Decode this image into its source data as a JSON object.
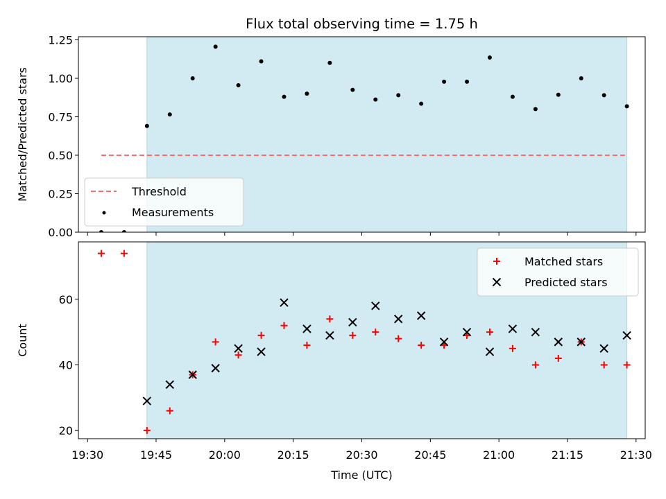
{
  "chart_data": [
    {
      "type": "scatter",
      "title": "Flux total observing time = 1.75 h",
      "ylabel": "Matched/Predicted stars",
      "xlabel": "",
      "ylim": [
        0,
        1.27
      ],
      "yticks": [
        0.0,
        0.25,
        0.5,
        0.75,
        1.0,
        1.25
      ],
      "ytick_labels": [
        "0.00",
        "0.25",
        "0.50",
        "0.75",
        "1.00",
        "1.25"
      ],
      "xticks": [
        "19:30",
        "19:45",
        "20:00",
        "20:15",
        "20:30",
        "20:45",
        "21:00",
        "21:15",
        "21:30"
      ],
      "xlim": [
        "19:28",
        "21:32"
      ],
      "shaded_region": {
        "start": "19:43",
        "end": "21:28",
        "color": "#add8e6"
      },
      "legend": {
        "placement": "lower-left",
        "entries": [
          {
            "name": "Threshold",
            "marker": "dashed-line",
            "color": "#ff6b6b"
          },
          {
            "name": "Measurements",
            "marker": "dot",
            "color": "#000000"
          }
        ]
      },
      "threshold": {
        "name": "Threshold",
        "y": 0.5,
        "x_start": "19:33",
        "x_end": "21:28",
        "color": "#ff6b6b"
      },
      "series": [
        {
          "name": "Measurements",
          "color": "#000000",
          "points": [
            [
              "19:33",
              0.0
            ],
            [
              "19:38",
              0.0
            ],
            [
              "19:43",
              0.69
            ],
            [
              "19:48",
              0.765
            ],
            [
              "19:53",
              1.0
            ],
            [
              "19:58",
              1.205
            ],
            [
              "20:03",
              0.955
            ],
            [
              "20:08",
              1.11
            ],
            [
              "20:13",
              0.88
            ],
            [
              "20:18",
              0.9
            ],
            [
              "20:23",
              1.1
            ],
            [
              "20:28",
              0.925
            ],
            [
              "20:33",
              0.862
            ],
            [
              "20:38",
              0.89
            ],
            [
              "20:43",
              0.835
            ],
            [
              "20:48",
              0.978
            ],
            [
              "20:53",
              0.978
            ],
            [
              "20:58",
              1.135
            ],
            [
              "21:03",
              0.88
            ],
            [
              "21:08",
              0.8
            ],
            [
              "21:13",
              0.893
            ],
            [
              "21:18",
              1.0
            ],
            [
              "21:23",
              0.89
            ],
            [
              "21:28",
              0.818
            ]
          ]
        }
      ]
    },
    {
      "type": "scatter",
      "title": "",
      "ylabel": "Count",
      "xlabel": "Time (UTC)",
      "ylim": [
        17.5,
        77.5
      ],
      "yticks": [
        20,
        40,
        60
      ],
      "ytick_labels": [
        "20",
        "40",
        "60"
      ],
      "xticks": [
        "19:30",
        "19:45",
        "20:00",
        "20:15",
        "20:30",
        "20:45",
        "21:00",
        "21:15",
        "21:30"
      ],
      "xlim": [
        "19:28",
        "21:32"
      ],
      "shaded_region": {
        "start": "19:43",
        "end": "21:28",
        "color": "#add8e6"
      },
      "legend": {
        "placement": "top-right",
        "entries": [
          {
            "name": "Matched stars",
            "marker": "plus",
            "color": "#ff0000"
          },
          {
            "name": "Predicted stars",
            "marker": "x",
            "color": "#000000"
          }
        ]
      },
      "series": [
        {
          "name": "Matched stars",
          "marker": "plus",
          "color": "#ff0000",
          "points": [
            [
              "19:33",
              74
            ],
            [
              "19:38",
              74
            ],
            [
              "19:43",
              20
            ],
            [
              "19:48",
              26
            ],
            [
              "19:53",
              37
            ],
            [
              "19:58",
              47
            ],
            [
              "20:03",
              43
            ],
            [
              "20:08",
              49
            ],
            [
              "20:13",
              52
            ],
            [
              "20:18",
              46
            ],
            [
              "20:23",
              54
            ],
            [
              "20:28",
              49
            ],
            [
              "20:33",
              50
            ],
            [
              "20:38",
              48
            ],
            [
              "20:43",
              46
            ],
            [
              "20:48",
              46
            ],
            [
              "20:53",
              49
            ],
            [
              "20:58",
              50
            ],
            [
              "21:03",
              45
            ],
            [
              "21:08",
              40
            ],
            [
              "21:13",
              42
            ],
            [
              "21:18",
              47
            ],
            [
              "21:23",
              40
            ],
            [
              "21:28",
              40
            ]
          ]
        },
        {
          "name": "Predicted stars",
          "marker": "x",
          "color": "#000000",
          "points": [
            [
              "19:43",
              29
            ],
            [
              "19:48",
              34
            ],
            [
              "19:53",
              37
            ],
            [
              "19:58",
              39
            ],
            [
              "20:03",
              45
            ],
            [
              "20:08",
              44
            ],
            [
              "20:13",
              59
            ],
            [
              "20:18",
              51
            ],
            [
              "20:23",
              49
            ],
            [
              "20:28",
              53
            ],
            [
              "20:33",
              58
            ],
            [
              "20:38",
              54
            ],
            [
              "20:43",
              55
            ],
            [
              "20:48",
              47
            ],
            [
              "20:53",
              50
            ],
            [
              "20:58",
              44
            ],
            [
              "21:03",
              51
            ],
            [
              "21:08",
              50
            ],
            [
              "21:13",
              47
            ],
            [
              "21:18",
              47
            ],
            [
              "21:23",
              45
            ],
            [
              "21:28",
              49
            ]
          ]
        }
      ]
    }
  ]
}
